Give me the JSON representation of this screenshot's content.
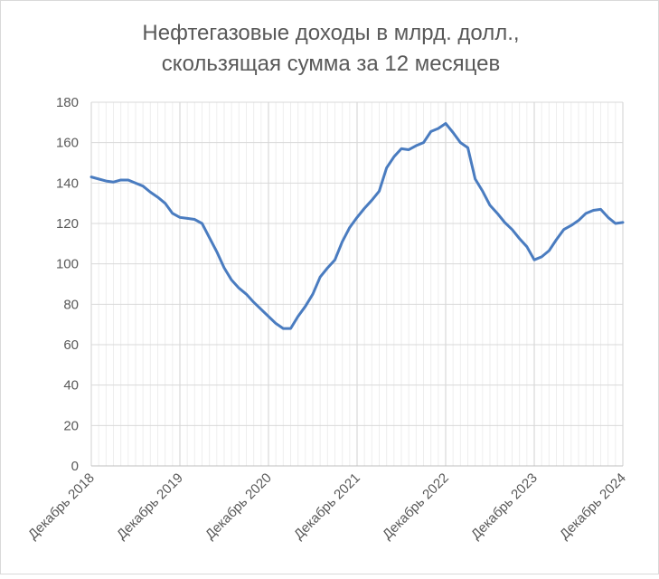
{
  "chart_data": {
    "type": "line",
    "title": [
      "Нефтегазовые доходы в млрд. долл.,",
      "скользящая сумма за 12 месяцев"
    ],
    "categories": [
      "Декабрь 2018",
      null,
      null,
      null,
      null,
      null,
      null,
      null,
      null,
      null,
      null,
      null,
      "Декабрь 2019",
      null,
      null,
      null,
      null,
      null,
      null,
      null,
      null,
      null,
      null,
      null,
      "Декабрь 2020",
      null,
      null,
      null,
      null,
      null,
      null,
      null,
      null,
      null,
      null,
      null,
      "Декабрь 2021",
      null,
      null,
      null,
      null,
      null,
      null,
      null,
      null,
      null,
      null,
      null,
      "Декабрь 2022",
      null,
      null,
      null,
      null,
      null,
      null,
      null,
      null,
      null,
      null,
      null,
      "Декабрь 2023",
      null,
      null,
      null,
      null,
      null,
      null,
      null,
      null,
      null,
      null,
      null,
      "Декабрь 2024"
    ],
    "series": [
      {
        "color": "#4a7cc0",
        "values": [
          143,
          142,
          141,
          140.5,
          141.5,
          141.5,
          140,
          138.5,
          135.5,
          133,
          130,
          125,
          123,
          122.5,
          122,
          120,
          113,
          106,
          98,
          92,
          88,
          85,
          81,
          77.5,
          74,
          70.5,
          68,
          68,
          74,
          79,
          85,
          93.5,
          98,
          102,
          111,
          118,
          123,
          127.5,
          131.5,
          136,
          147.5,
          153,
          157,
          156.5,
          158.5,
          160,
          165.5,
          167,
          169.5,
          165,
          160,
          157.5,
          142,
          136,
          129,
          125,
          120.5,
          117,
          112.5,
          108.5,
          102,
          103.5,
          106.5,
          112,
          117,
          119,
          121.5,
          125,
          126.5,
          127,
          123,
          120,
          120.5
        ]
      }
    ],
    "ylim": [
      0,
      180
    ],
    "yticks": [
      0,
      20,
      40,
      60,
      80,
      100,
      120,
      140,
      160,
      180
    ],
    "grid": true
  }
}
